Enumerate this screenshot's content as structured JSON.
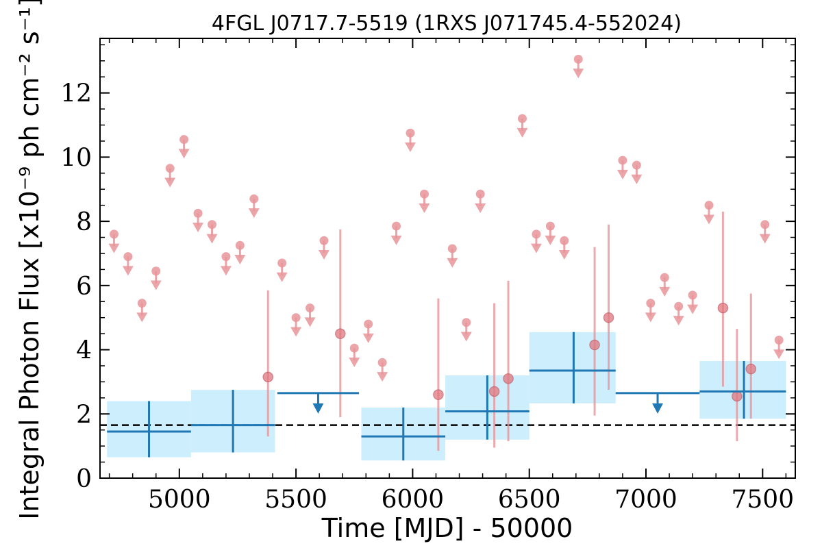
{
  "chart_data": {
    "type": "scatter",
    "title": "4FGL J0717.7-5519 (1RXS J071745.4-552024)",
    "xlabel": "Time [MJD] - 50000",
    "ylabel": "Integral Photon Flux [x10⁻⁹ ph cm⁻² s⁻¹]",
    "xlim": [
      4660,
      7640
    ],
    "ylim": [
      0,
      13.7
    ],
    "x_ticks": [
      5000,
      5500,
      6000,
      6500,
      7000,
      7500
    ],
    "x_tick_labels": [
      "5000",
      "5500",
      "6000",
      "6500",
      "7000",
      "7500"
    ],
    "y_ticks": [
      0,
      2,
      4,
      6,
      8,
      10,
      12
    ],
    "y_tick_labels": [
      "0",
      "2",
      "4",
      "6",
      "8",
      "10",
      "12"
    ],
    "reference_line": {
      "y": 1.65,
      "style": "dashed",
      "color": "#000000"
    },
    "colors": {
      "fine_bins": "#e8959a",
      "coarse_bins": "#1f77b4",
      "coarse_band": "#cdeefc"
    },
    "coarse_bins": [
      {
        "x0": 4690,
        "x1": 5050,
        "x": 4870,
        "y": 1.45,
        "ylo": 0.65,
        "yhi": 2.4,
        "band_lo": 0.65,
        "band_hi": 2.4
      },
      {
        "x0": 5050,
        "x1": 5410,
        "x": 5230,
        "y": 1.65,
        "ylo": 0.8,
        "yhi": 2.75,
        "band_lo": 0.8,
        "band_hi": 2.75
      },
      {
        "x0": 5420,
        "x1": 5770,
        "x": 5595,
        "upper_limit": 2.65
      },
      {
        "x0": 5780,
        "x1": 6140,
        "x": 5960,
        "y": 1.3,
        "ylo": 0.55,
        "yhi": 2.2,
        "band_lo": 0.55,
        "band_hi": 2.2
      },
      {
        "x0": 6140,
        "x1": 6500,
        "x": 6320,
        "y": 2.08,
        "ylo": 1.2,
        "yhi": 3.2,
        "band_lo": 1.2,
        "band_hi": 3.2
      },
      {
        "x0": 6500,
        "x1": 6870,
        "x": 6690,
        "y": 3.35,
        "ylo": 2.33,
        "yhi": 4.55,
        "band_lo": 2.33,
        "band_hi": 4.55
      },
      {
        "x0": 6870,
        "x1": 7230,
        "x": 7050,
        "upper_limit": 2.65
      },
      {
        "x0": 7230,
        "x1": 7600,
        "x": 7420,
        "y": 2.7,
        "ylo": 1.85,
        "yhi": 3.65,
        "band_lo": 1.85,
        "band_hi": 3.65
      }
    ],
    "fine_bins": [
      {
        "x": 4720,
        "y": 7.6,
        "upper_limit": true
      },
      {
        "x": 4780,
        "y": 6.9,
        "upper_limit": true
      },
      {
        "x": 4840,
        "y": 5.45,
        "upper_limit": true
      },
      {
        "x": 4900,
        "y": 6.45,
        "upper_limit": true
      },
      {
        "x": 4960,
        "y": 9.65,
        "upper_limit": true
      },
      {
        "x": 5020,
        "y": 10.55,
        "upper_limit": true
      },
      {
        "x": 5080,
        "y": 8.25,
        "upper_limit": true
      },
      {
        "x": 5140,
        "y": 7.9,
        "upper_limit": true
      },
      {
        "x": 5200,
        "y": 6.9,
        "upper_limit": true
      },
      {
        "x": 5260,
        "y": 7.25,
        "upper_limit": true
      },
      {
        "x": 5320,
        "y": 8.7,
        "upper_limit": true
      },
      {
        "x": 5380,
        "y": 3.15,
        "ylo": 1.3,
        "yhi": 5.85
      },
      {
        "x": 5440,
        "y": 6.7,
        "upper_limit": true
      },
      {
        "x": 5500,
        "y": 5.0,
        "upper_limit": true
      },
      {
        "x": 5560,
        "y": 5.3,
        "upper_limit": true
      },
      {
        "x": 5620,
        "y": 7.4,
        "upper_limit": true
      },
      {
        "x": 5690,
        "y": 4.5,
        "ylo": 1.9,
        "yhi": 7.75
      },
      {
        "x": 5750,
        "y": 4.05,
        "upper_limit": true
      },
      {
        "x": 5810,
        "y": 4.8,
        "upper_limit": true
      },
      {
        "x": 5870,
        "y": 3.6,
        "upper_limit": true
      },
      {
        "x": 5930,
        "y": 7.85,
        "upper_limit": true
      },
      {
        "x": 5990,
        "y": 10.75,
        "upper_limit": true
      },
      {
        "x": 6050,
        "y": 8.85,
        "upper_limit": true
      },
      {
        "x": 6110,
        "y": 2.6,
        "ylo": 0.85,
        "yhi": 5.6
      },
      {
        "x": 6170,
        "y": 7.15,
        "upper_limit": true
      },
      {
        "x": 6230,
        "y": 4.85,
        "upper_limit": true
      },
      {
        "x": 6290,
        "y": 8.85,
        "upper_limit": true
      },
      {
        "x": 6350,
        "y": 2.7,
        "ylo": 0.95,
        "yhi": 5.45
      },
      {
        "x": 6410,
        "y": 3.1,
        "ylo": 1.15,
        "yhi": 6.15
      },
      {
        "x": 6470,
        "y": 11.2,
        "upper_limit": true
      },
      {
        "x": 6530,
        "y": 7.6,
        "upper_limit": true
      },
      {
        "x": 6590,
        "y": 7.85,
        "upper_limit": true
      },
      {
        "x": 6650,
        "y": 7.4,
        "upper_limit": true
      },
      {
        "x": 6710,
        "y": 13.05,
        "upper_limit": true
      },
      {
        "x": 6780,
        "y": 4.15,
        "ylo": 1.95,
        "yhi": 7.2
      },
      {
        "x": 6840,
        "y": 5.0,
        "ylo": 2.75,
        "yhi": 7.9
      },
      {
        "x": 6900,
        "y": 9.9,
        "upper_limit": true
      },
      {
        "x": 6960,
        "y": 9.75,
        "upper_limit": true
      },
      {
        "x": 7020,
        "y": 5.45,
        "upper_limit": true
      },
      {
        "x": 7080,
        "y": 6.25,
        "upper_limit": true
      },
      {
        "x": 7140,
        "y": 5.35,
        "upper_limit": true
      },
      {
        "x": 7200,
        "y": 5.7,
        "upper_limit": true
      },
      {
        "x": 7270,
        "y": 8.5,
        "upper_limit": true
      },
      {
        "x": 7330,
        "y": 5.3,
        "ylo": 2.85,
        "yhi": 8.3
      },
      {
        "x": 7390,
        "y": 2.55,
        "ylo": 1.15,
        "yhi": 4.65
      },
      {
        "x": 7450,
        "y": 3.4,
        "ylo": 1.85,
        "yhi": 5.75
      },
      {
        "x": 7510,
        "y": 7.9,
        "upper_limit": true
      },
      {
        "x": 7570,
        "y": 4.3,
        "upper_limit": true
      }
    ]
  }
}
